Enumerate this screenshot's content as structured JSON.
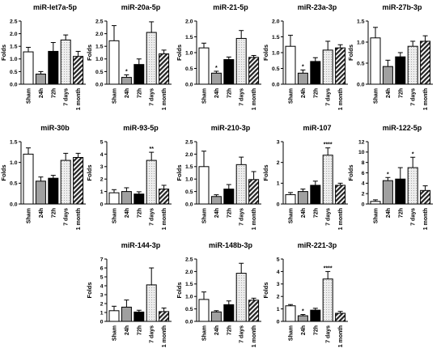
{
  "categories": [
    "Sham",
    "24h",
    "72h",
    "7 days",
    "1 month"
  ],
  "ylabel": "Folds",
  "colors": {
    "sham": "#ffffff",
    "h24": "#a0a0a0",
    "h72": "#000000",
    "d7": "#e6e6e6",
    "m1": "#8c8c8c",
    "axis": "#000000"
  },
  "chart_data": [
    {
      "type": "bar",
      "title": "miR-let7a-5p",
      "ylabel": "Folds",
      "ylim": [
        0,
        2.5
      ],
      "ticks": [
        "0.0",
        "0.5",
        "1.0",
        "1.5",
        "2.0",
        "2.5"
      ],
      "categories": [
        "Sham",
        "24h",
        "72h",
        "7 days",
        "1 month"
      ],
      "values": [
        1.28,
        0.4,
        1.3,
        1.75,
        1.1
      ],
      "errors": [
        0.18,
        0.1,
        0.35,
        0.2,
        0.2
      ],
      "sig": [
        "",
        "",
        "",
        "",
        ""
      ]
    },
    {
      "type": "bar",
      "title": "miR-20a-5p",
      "ylabel": "Folds",
      "ylim": [
        0,
        2.5
      ],
      "ticks": [
        "0.0",
        "0.5",
        "1.0",
        "1.5",
        "2.0",
        "2.5"
      ],
      "categories": [
        "Sham",
        "24h",
        "72h",
        "7 days",
        "1 month"
      ],
      "values": [
        1.72,
        0.27,
        0.78,
        2.05,
        1.2
      ],
      "errors": [
        0.6,
        0.1,
        0.22,
        0.42,
        0.15
      ],
      "sig": [
        "",
        "*",
        "",
        "",
        ""
      ]
    },
    {
      "type": "bar",
      "title": "miR-21-5p",
      "ylabel": "Folds",
      "ylim": [
        0,
        2.0
      ],
      "ticks": [
        "0.0",
        "0.5",
        "1.0",
        "1.5",
        "2.0"
      ],
      "categories": [
        "Sham",
        "24h",
        "72h",
        "7 days",
        "1 month"
      ],
      "values": [
        1.15,
        0.35,
        0.78,
        1.45,
        0.85
      ],
      "errors": [
        0.15,
        0.06,
        0.08,
        0.25,
        0.06
      ],
      "sig": [
        "",
        "*",
        "",
        "",
        ""
      ]
    },
    {
      "type": "bar",
      "title": "miR-23a-3p",
      "ylabel": "Folds",
      "ylim": [
        0,
        2.0
      ],
      "ticks": [
        "0.0",
        "0.5",
        "1.0",
        "1.5",
        "2.0"
      ],
      "categories": [
        "Sham",
        "24h",
        "72h",
        "7 days",
        "1 month"
      ],
      "values": [
        1.2,
        0.35,
        0.72,
        1.08,
        1.15
      ],
      "errors": [
        0.35,
        0.1,
        0.12,
        0.28,
        0.1
      ],
      "sig": [
        "",
        "*",
        "",
        "",
        ""
      ]
    },
    {
      "type": "bar",
      "title": "miR-27b-3p",
      "ylabel": "Folds",
      "ylim": [
        0,
        1.5
      ],
      "ticks": [
        "0.0",
        "0.5",
        "1.0",
        "1.5"
      ],
      "categories": [
        "Sham",
        "24h",
        "72h",
        "7 days",
        "1 month"
      ],
      "values": [
        1.1,
        0.42,
        0.65,
        0.9,
        1.02
      ],
      "errors": [
        0.25,
        0.15,
        0.1,
        0.12,
        0.13
      ],
      "sig": [
        "",
        "",
        "",
        "",
        ""
      ]
    },
    {
      "type": "bar",
      "title": "miR-30b",
      "ylabel": "Folds",
      "ylim": [
        0,
        1.5
      ],
      "ticks": [
        "0.0",
        "0.5",
        "1.0",
        "1.5"
      ],
      "categories": [
        "Sham",
        "24h",
        "72h",
        "7 days",
        "1 month"
      ],
      "values": [
        1.2,
        0.55,
        0.62,
        1.05,
        1.12
      ],
      "errors": [
        0.15,
        0.1,
        0.07,
        0.17,
        0.1
      ],
      "sig": [
        "",
        "",
        "",
        "",
        ""
      ]
    },
    {
      "type": "bar",
      "title": "miR-93-5p",
      "ylabel": "Folds",
      "ylim": [
        0,
        5
      ],
      "ticks": [
        "0",
        "1",
        "2",
        "3",
        "4",
        "5"
      ],
      "categories": [
        "Sham",
        "24h",
        "72h",
        "7 days",
        "1 month"
      ],
      "values": [
        0.9,
        1.0,
        0.8,
        3.5,
        1.2
      ],
      "errors": [
        0.25,
        0.3,
        0.18,
        0.65,
        0.3
      ],
      "sig": [
        "",
        "",
        "",
        "**",
        ""
      ]
    },
    {
      "type": "bar",
      "title": "miR-210-3p",
      "ylabel": "Folds",
      "ylim": [
        0,
        2.5
      ],
      "ticks": [
        "0.0",
        "0.5",
        "1.0",
        "1.5",
        "2.0",
        "2.5"
      ],
      "categories": [
        "Sham",
        "24h",
        "72h",
        "7 days",
        "1 month"
      ],
      "values": [
        1.5,
        0.3,
        0.6,
        1.58,
        0.98
      ],
      "errors": [
        0.62,
        0.07,
        0.18,
        0.3,
        0.32
      ],
      "sig": [
        "",
        "",
        "",
        "",
        ""
      ]
    },
    {
      "type": "bar",
      "title": "miR-107",
      "ylabel": "Folds",
      "ylim": [
        0,
        3
      ],
      "ticks": [
        "0",
        "1",
        "2",
        "3"
      ],
      "categories": [
        "Sham",
        "24h",
        "72h",
        "7 days",
        "1 month"
      ],
      "values": [
        0.45,
        0.6,
        0.9,
        2.35,
        0.9
      ],
      "errors": [
        0.1,
        0.12,
        0.2,
        0.35,
        0.1
      ],
      "sig": [
        "",
        "",
        "",
        "****",
        ""
      ]
    },
    {
      "type": "bar",
      "title": "miR-122-5p",
      "ylabel": "Folds",
      "ylim": [
        0,
        12
      ],
      "ticks": [
        "0",
        "2",
        "4",
        "6",
        "8",
        "10",
        "12"
      ],
      "categories": [
        "Sham",
        "24h",
        "72h",
        "7 days",
        "1 month"
      ],
      "values": [
        0.5,
        4.5,
        4.8,
        7.0,
        2.6
      ],
      "errors": [
        0.3,
        0.6,
        2.2,
        2.0,
        0.9
      ],
      "sig": [
        "",
        "*",
        "",
        "*",
        ""
      ]
    },
    {
      "type": "bar",
      "title": "miR-144-3p",
      "ylabel": "Folds",
      "ylim": [
        0,
        7
      ],
      "ticks": [
        "0",
        "1",
        "2",
        "3",
        "4",
        "5",
        "6",
        "7"
      ],
      "categories": [
        "Sham",
        "24h",
        "72h",
        "7 days",
        "1 month"
      ],
      "values": [
        1.2,
        1.6,
        1.05,
        4.1,
        1.1
      ],
      "errors": [
        0.5,
        0.8,
        0.2,
        1.9,
        0.4
      ],
      "sig": [
        "",
        "",
        "",
        "",
        ""
      ]
    },
    {
      "type": "bar",
      "title": "miR-148b-3p",
      "ylabel": "Folds",
      "ylim": [
        0,
        2.5
      ],
      "ticks": [
        "0.0",
        "0.5",
        "1.0",
        "1.5",
        "2.0",
        "2.5"
      ],
      "categories": [
        "Sham",
        "24h",
        "72h",
        "7 days",
        "1 month"
      ],
      "values": [
        0.88,
        0.38,
        0.67,
        1.93,
        0.85
      ],
      "errors": [
        0.3,
        0.05,
        0.15,
        0.4,
        0.08
      ],
      "sig": [
        "",
        "",
        "",
        "",
        ""
      ]
    },
    {
      "type": "bar",
      "title": "miR-221-3p",
      "ylabel": "Folds",
      "ylim": [
        0,
        5
      ],
      "ticks": [
        "0",
        "1",
        "2",
        "3",
        "4",
        "5"
      ],
      "categories": [
        "Sham",
        "24h",
        "72h",
        "7 days",
        "1 month"
      ],
      "values": [
        1.25,
        0.45,
        0.9,
        3.4,
        0.65
      ],
      "errors": [
        0.1,
        0.1,
        0.15,
        0.6,
        0.15
      ],
      "sig": [
        "",
        "*",
        "",
        "****",
        ""
      ]
    }
  ]
}
